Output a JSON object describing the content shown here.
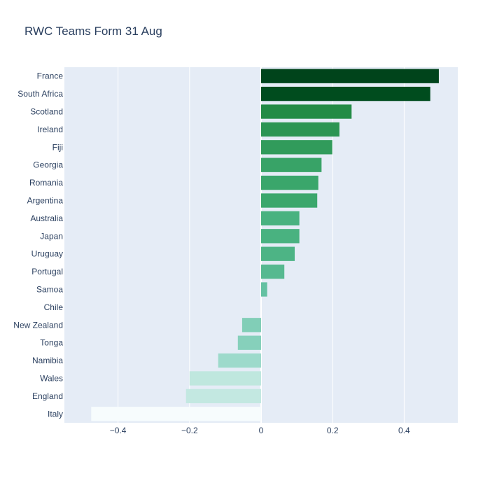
{
  "chart_data": {
    "type": "bar",
    "orientation": "horizontal",
    "title": "RWC Teams Form 31 Aug",
    "xlabel": "",
    "ylabel": "",
    "xlim": [
      -0.55,
      0.55
    ],
    "x_ticks": [
      -0.4,
      -0.2,
      0,
      0.2,
      0.4
    ],
    "x_tick_labels": [
      "−0.4",
      "−0.2",
      "0",
      "0.2",
      "0.4"
    ],
    "grid": true,
    "plot_background": "#e5ecf6",
    "colorscale": [
      "#f7fcfd",
      "#e5f5f9",
      "#ccece6",
      "#99d8c9",
      "#66c2a4",
      "#41ae76",
      "#238b45",
      "#006d2c",
      "#00441b"
    ],
    "categories": [
      "France",
      "South Africa",
      "Scotland",
      "Ireland",
      "Fiji",
      "Georgia",
      "Romania",
      "Argentina",
      "Australia",
      "Japan",
      "Uruguay",
      "Portugal",
      "Samoa",
      "Chile",
      "New Zealand",
      "Tonga",
      "Namibia",
      "Wales",
      "England",
      "Italy"
    ],
    "values": [
      0.497,
      0.473,
      0.253,
      0.219,
      0.199,
      0.169,
      0.16,
      0.157,
      0.107,
      0.107,
      0.094,
      0.065,
      0.017,
      0.0,
      -0.053,
      -0.065,
      -0.12,
      -0.2,
      -0.21,
      -0.475
    ]
  }
}
